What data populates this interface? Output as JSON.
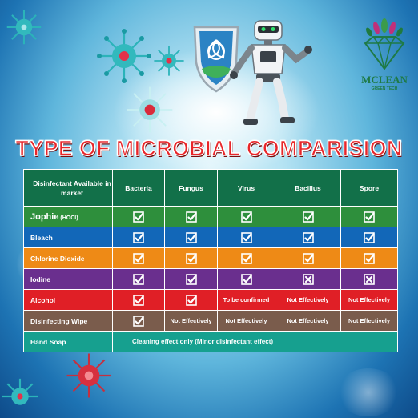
{
  "title": "TYPE OF MICROBIAL COMPARISION",
  "logo": {
    "name": "MCLEAN",
    "tagline": "GREEN TECH"
  },
  "table": {
    "header_label": "Disinfectant Available in market",
    "columns": [
      "Bacteria",
      "Fungus",
      "Virus",
      "Bacillus",
      "Spore"
    ],
    "rows": [
      {
        "label": "Jophie",
        "sublabel": "(HOCl)",
        "color": "#2e8f3c",
        "cells": [
          {
            "type": "check"
          },
          {
            "type": "check"
          },
          {
            "type": "check"
          },
          {
            "type": "check"
          },
          {
            "type": "check"
          }
        ]
      },
      {
        "label": "Bleach",
        "color": "#1267b8",
        "cells": [
          {
            "type": "check"
          },
          {
            "type": "check"
          },
          {
            "type": "check"
          },
          {
            "type": "check"
          },
          {
            "type": "check"
          }
        ]
      },
      {
        "label": "Chlorine Dioxide",
        "color": "#ee8a16",
        "cells": [
          {
            "type": "check"
          },
          {
            "type": "check"
          },
          {
            "type": "check"
          },
          {
            "type": "check"
          },
          {
            "type": "check"
          }
        ]
      },
      {
        "label": "Iodine",
        "color": "#6a2f8e",
        "cells": [
          {
            "type": "check"
          },
          {
            "type": "check"
          },
          {
            "type": "check"
          },
          {
            "type": "cross"
          },
          {
            "type": "cross"
          }
        ]
      },
      {
        "label": "Alcohol",
        "color": "#e01f26",
        "cells": [
          {
            "type": "check"
          },
          {
            "type": "check"
          },
          {
            "type": "text",
            "text": "To be confirmed"
          },
          {
            "type": "text",
            "text": "Not Effectively"
          },
          {
            "type": "text",
            "text": "Not Effectively"
          }
        ]
      },
      {
        "label": "Disinfecting Wipe",
        "color": "#7a5c4c",
        "cells": [
          {
            "type": "check"
          },
          {
            "type": "text",
            "text": "Not Effectively"
          },
          {
            "type": "text",
            "text": "Not Effectively"
          },
          {
            "type": "text",
            "text": "Not Effectively"
          },
          {
            "type": "text",
            "text": "Not Effectively"
          }
        ]
      }
    ],
    "hand_soap": {
      "label": "Hand Soap",
      "note": "Cleaning effect only (Minor disinfectant effect)",
      "color": "#16a08f"
    }
  },
  "colors": {
    "title_red": "#e8262a",
    "header_green": "#127049",
    "logo_green": "#1e7a46"
  },
  "icons": [
    "virus-icon",
    "shield-icon",
    "robot-icon",
    "diamond-logo-icon",
    "checkbox-check-icon",
    "checkbox-cross-icon"
  ]
}
